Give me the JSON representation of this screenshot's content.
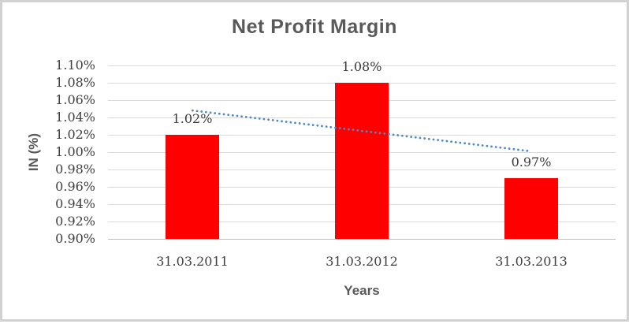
{
  "window": {
    "background_color": "#ffffff",
    "border_color": "#d2d2d2"
  },
  "chart_data": {
    "type": "bar",
    "title": "Net Profit Margin",
    "xlabel": "Years",
    "ylabel": "IN (%)",
    "categories": [
      "31.03.2011",
      "31.03.2012",
      "31.03.2013"
    ],
    "values": [
      1.02,
      1.08,
      0.97
    ],
    "data_labels": [
      "1.02%",
      "1.08%",
      "0.97%"
    ],
    "series_name": "Net Profit Margin",
    "ylim": [
      0.9,
      1.1
    ],
    "ytick_step": 0.02,
    "ytick_labels": [
      "1.10%",
      "1.08%",
      "1.06%",
      "1.04%",
      "1.02%",
      "1.00%",
      "0.98%",
      "0.96%",
      "0.94%",
      "0.92%",
      "0.90%"
    ],
    "ytick_values": [
      1.1,
      1.08,
      1.06,
      1.04,
      1.02,
      1.0,
      0.98,
      0.96,
      0.94,
      0.92,
      0.9
    ],
    "grid": true,
    "legend": false,
    "bar_color": "#ff0000",
    "trendline": {
      "type": "linear",
      "style": "dotted",
      "color": "#4e8ac8",
      "start_value": 1.048,
      "end_value": 1.001
    }
  },
  "colors": {
    "title": "#595959",
    "axis_title": "#595959",
    "tick_label": "#404040",
    "data_label": "#3a3a3a",
    "gridline": "#d9d9d9",
    "axis_line": "#bfbfbf"
  }
}
